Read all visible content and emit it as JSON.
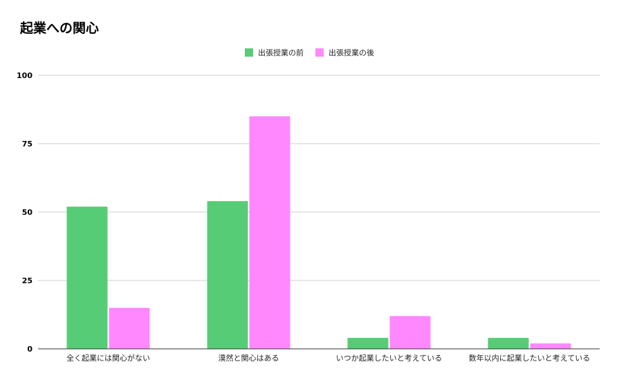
{
  "chart_data": {
    "type": "bar",
    "title": "起業への関心",
    "categories": [
      "全く起業には関心がない",
      "漠然と関心はある",
      "いつか起業したいと考えている",
      "数年以内に起業したいと考えている"
    ],
    "series": [
      {
        "name": "出張授業の前",
        "values": [
          52,
          54,
          4,
          4
        ],
        "color": "#57cc76"
      },
      {
        "name": "出張授業の後",
        "values": [
          15,
          85,
          12,
          2
        ],
        "color": "#ff88ff"
      }
    ],
    "yticks": [
      0,
      25,
      50,
      75,
      100
    ],
    "ylim": [
      0,
      100
    ],
    "grid": true,
    "legend_position": "top-center"
  }
}
